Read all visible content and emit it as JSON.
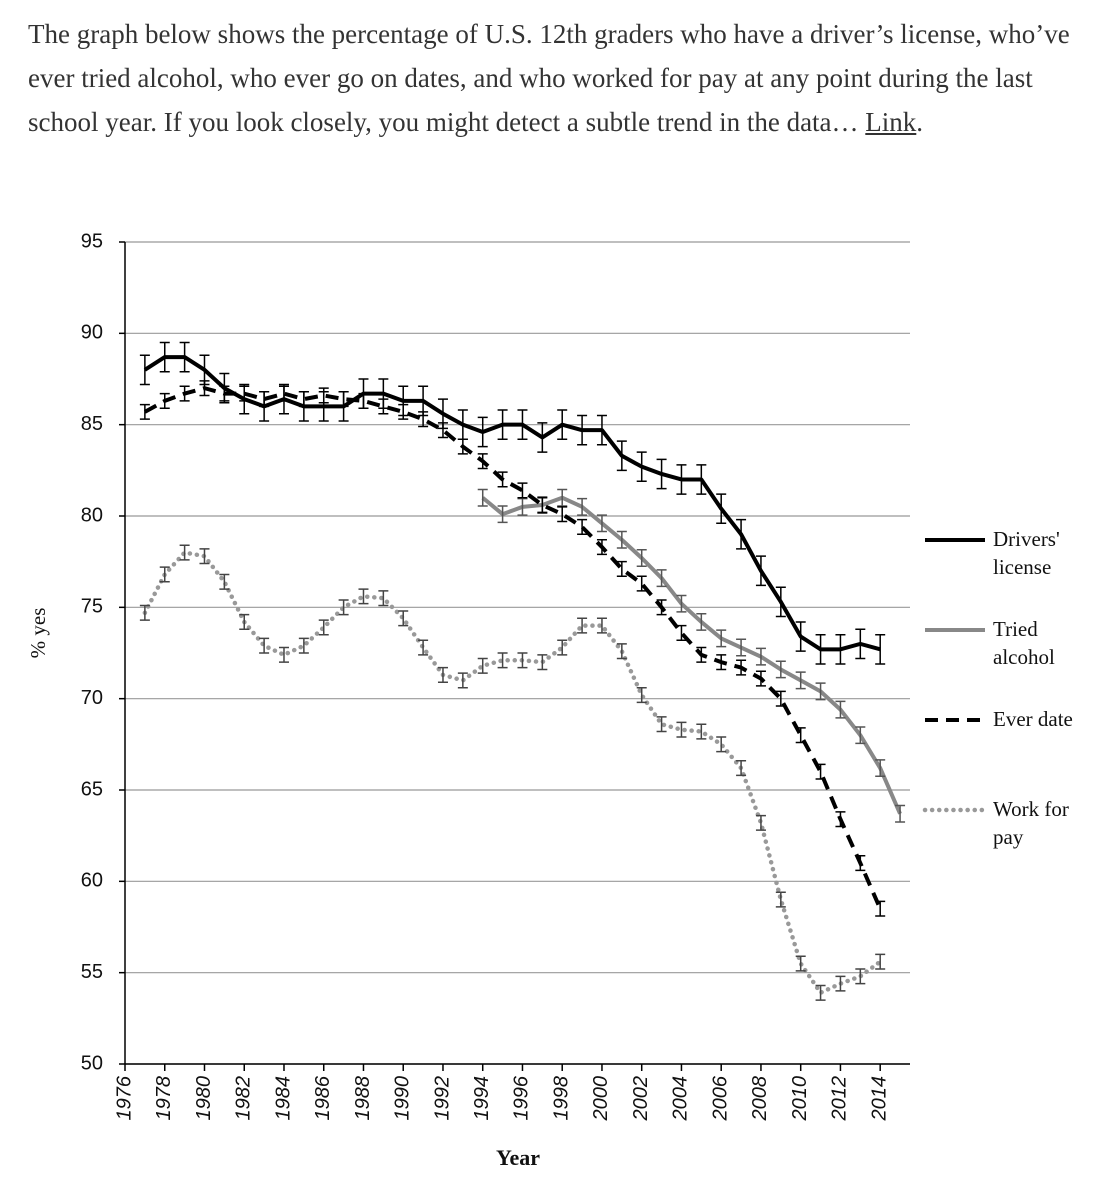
{
  "intro": {
    "text": "The graph below shows the percentage of U.S. 12th graders who have a driver’s license, who’ve ever tried alcohol, who ever go on dates, and who worked for pay at any point during the last school year. If you look closely, you might detect a subtle trend in the data… ",
    "link": "Link",
    "after": "."
  },
  "chart_data": {
    "type": "line",
    "xlabel": "Year",
    "ylabel": "% yes",
    "xlim": [
      1976,
      2015.5
    ],
    "xticks": [
      1976,
      1978,
      1980,
      1982,
      1984,
      1986,
      1988,
      1990,
      1992,
      1994,
      1996,
      1998,
      2000,
      2002,
      2004,
      2006,
      2008,
      2010,
      2012,
      2014
    ],
    "ylim": [
      50,
      95
    ],
    "yticks": [
      50,
      55,
      60,
      65,
      70,
      75,
      80,
      85,
      90,
      95
    ],
    "grid": true,
    "legend": "right",
    "series": [
      {
        "name": "Drivers' license",
        "color": "#000000",
        "dash": "solid",
        "error": 0.8,
        "x": [
          1977,
          1978,
          1979,
          1980,
          1981,
          1982,
          1983,
          1984,
          1985,
          1986,
          1987,
          1988,
          1989,
          1990,
          1991,
          1992,
          1993,
          1994,
          1995,
          1996,
          1997,
          1998,
          1999,
          2000,
          2001,
          2002,
          2003,
          2004,
          2005,
          2006,
          2007,
          2008,
          2009,
          2010,
          2011,
          2012,
          2013,
          2014
        ],
        "values": [
          88.0,
          88.7,
          88.7,
          88.0,
          87.0,
          86.4,
          86.0,
          86.4,
          86.0,
          86.0,
          86.0,
          86.7,
          86.7,
          86.3,
          86.3,
          85.6,
          85.0,
          84.6,
          85.0,
          85.0,
          84.3,
          85.0,
          84.7,
          84.7,
          83.3,
          82.7,
          82.3,
          82.0,
          82.0,
          80.4,
          79.0,
          77.0,
          75.3,
          73.4,
          72.7,
          72.7,
          73.0,
          72.7
        ]
      },
      {
        "name": "Tried alcohol",
        "color": "#888888",
        "dash": "solid",
        "error": 0.45,
        "x": [
          1994,
          1995,
          1996,
          1997,
          1998,
          1999,
          2000,
          2001,
          2002,
          2003,
          2004,
          2005,
          2006,
          2007,
          2008,
          2009,
          2010,
          2011,
          2012,
          2013,
          2014,
          2015
        ],
        "values": [
          81.0,
          80.1,
          80.5,
          80.6,
          81.0,
          80.5,
          79.6,
          78.7,
          77.7,
          76.6,
          75.2,
          74.2,
          73.3,
          72.8,
          72.3,
          71.6,
          71.0,
          70.4,
          69.4,
          68.0,
          66.2,
          63.7
        ]
      },
      {
        "name": "Ever date",
        "color": "#000000",
        "dash": "dashed",
        "error": 0.4,
        "x": [
          1977,
          1978,
          1979,
          1980,
          1981,
          1982,
          1983,
          1984,
          1985,
          1986,
          1987,
          1988,
          1989,
          1990,
          1991,
          1992,
          1993,
          1994,
          1995,
          1996,
          1997,
          1998,
          1999,
          2000,
          2001,
          2002,
          2003,
          2004,
          2005,
          2006,
          2007,
          2008,
          2009,
          2010,
          2011,
          2012,
          2013,
          2014
        ],
        "values": [
          85.7,
          86.3,
          86.7,
          87.0,
          86.7,
          86.7,
          86.4,
          86.7,
          86.4,
          86.6,
          86.4,
          86.3,
          86.0,
          85.7,
          85.3,
          84.7,
          83.8,
          83.0,
          82.0,
          81.4,
          80.6,
          80.1,
          79.4,
          78.3,
          77.1,
          76.3,
          75.0,
          73.6,
          72.4,
          72.0,
          71.7,
          71.1,
          70.0,
          68.0,
          66.0,
          63.4,
          61.0,
          58.5
        ]
      },
      {
        "name": "Work for pay",
        "color": "#999999",
        "dash": "dotted",
        "error": 0.4,
        "x": [
          1977,
          1978,
          1979,
          1980,
          1981,
          1982,
          1983,
          1984,
          1985,
          1986,
          1987,
          1988,
          1989,
          1990,
          1991,
          1992,
          1993,
          1994,
          1995,
          1996,
          1997,
          1998,
          1999,
          2000,
          2001,
          2002,
          2003,
          2004,
          2005,
          2006,
          2007,
          2008,
          2009,
          2010,
          2011,
          2012,
          2013,
          2014
        ],
        "values": [
          74.7,
          76.8,
          78.0,
          77.8,
          76.4,
          74.2,
          72.9,
          72.4,
          72.9,
          73.9,
          75.0,
          75.6,
          75.5,
          74.4,
          72.8,
          71.3,
          71.0,
          71.8,
          72.1,
          72.1,
          72.0,
          72.8,
          74.0,
          74.0,
          72.6,
          70.2,
          68.6,
          68.3,
          68.2,
          67.5,
          66.2,
          63.2,
          59.0,
          55.5,
          53.9,
          54.4,
          54.8,
          55.6
        ]
      }
    ]
  }
}
